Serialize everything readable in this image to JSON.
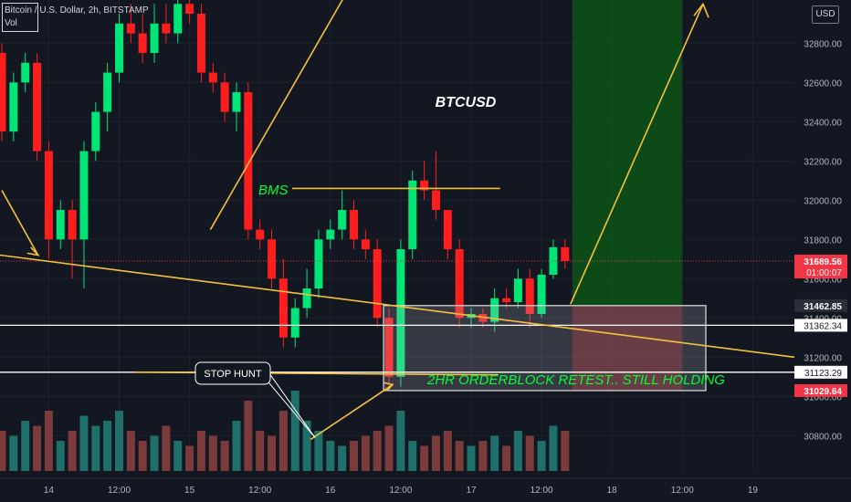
{
  "header": {
    "symbol": "Bitcoin / U.S. Dollar, 2h, BITSTAMP",
    "volume_label": "Vol"
  },
  "currency_button": "USD",
  "colors": {
    "up": "#00e676",
    "down": "#ff1e1e",
    "vol_up": "#1f6f6a",
    "vol_down": "#7c3b3b",
    "annotation": "#f5c13c",
    "label_green": "#00ff33",
    "bg": "#131722",
    "target_zone": "#0b5d16",
    "stop_zone": "#6b1f25"
  },
  "chart_data": {
    "type": "candlestick",
    "title": "BTCUSD",
    "ylim": [
      30620,
      33020
    ],
    "y_ticks": [
      30800,
      31000,
      31200,
      31400,
      31600,
      31800,
      32000,
      32200,
      32400,
      32600,
      32800
    ],
    "y_tick_labels": [
      "30800.00",
      "31000.00",
      "31200.00",
      "31400.00",
      "31600.00",
      "31800.00",
      "32000.00",
      "32200.00",
      "32400.00",
      "32600.00",
      "32800.00"
    ],
    "x_ticks": [
      {
        "label": "14",
        "index": 4
      },
      {
        "label": "12:00",
        "index": 10
      },
      {
        "label": "15",
        "index": 16
      },
      {
        "label": "12:00",
        "index": 22
      },
      {
        "label": "16",
        "index": 28
      },
      {
        "label": "12:00",
        "index": 34
      },
      {
        "label": "17",
        "index": 40
      },
      {
        "label": "12:00",
        "index": 46
      },
      {
        "label": "18",
        "index": 52
      },
      {
        "label": "12:00",
        "index": 58
      },
      {
        "label": "19",
        "index": 64
      }
    ],
    "candles": [
      {
        "o": 32750,
        "h": 32800,
        "l": 32300,
        "c": 32350
      },
      {
        "o": 32350,
        "h": 32650,
        "l": 32300,
        "c": 32600
      },
      {
        "o": 32600,
        "h": 32750,
        "l": 32550,
        "c": 32700
      },
      {
        "o": 32700,
        "h": 32750,
        "l": 32200,
        "c": 32250
      },
      {
        "o": 32250,
        "h": 32300,
        "l": 31700,
        "c": 31800
      },
      {
        "o": 31800,
        "h": 32000,
        "l": 31750,
        "c": 31950
      },
      {
        "o": 31950,
        "h": 32000,
        "l": 31600,
        "c": 31800
      },
      {
        "o": 31800,
        "h": 32300,
        "l": 31550,
        "c": 32250
      },
      {
        "o": 32250,
        "h": 32500,
        "l": 32200,
        "c": 32450
      },
      {
        "o": 32450,
        "h": 32700,
        "l": 32350,
        "c": 32650
      },
      {
        "o": 32650,
        "h": 32950,
        "l": 32600,
        "c": 32900
      },
      {
        "o": 32900,
        "h": 33000,
        "l": 32800,
        "c": 32850
      },
      {
        "o": 32850,
        "h": 32950,
        "l": 32700,
        "c": 32750
      },
      {
        "o": 32750,
        "h": 33000,
        "l": 32700,
        "c": 32900
      },
      {
        "o": 32900,
        "h": 33000,
        "l": 32800,
        "c": 32850
      },
      {
        "o": 32850,
        "h": 33050,
        "l": 32800,
        "c": 33000
      },
      {
        "o": 33000,
        "h": 33100,
        "l": 32900,
        "c": 32950
      },
      {
        "o": 32950,
        "h": 33000,
        "l": 32600,
        "c": 32650
      },
      {
        "o": 32650,
        "h": 32700,
        "l": 32550,
        "c": 32600
      },
      {
        "o": 32600,
        "h": 32650,
        "l": 32400,
        "c": 32450
      },
      {
        "o": 32450,
        "h": 32600,
        "l": 32350,
        "c": 32550
      },
      {
        "o": 32550,
        "h": 32600,
        "l": 31800,
        "c": 31850
      },
      {
        "o": 31850,
        "h": 31900,
        "l": 31750,
        "c": 31800
      },
      {
        "o": 31800,
        "h": 31850,
        "l": 31550,
        "c": 31600
      },
      {
        "o": 31600,
        "h": 31700,
        "l": 31250,
        "c": 31300
      },
      {
        "o": 31300,
        "h": 31500,
        "l": 31250,
        "c": 31450
      },
      {
        "o": 31450,
        "h": 31650,
        "l": 31400,
        "c": 31550
      },
      {
        "o": 31550,
        "h": 31850,
        "l": 31500,
        "c": 31800
      },
      {
        "o": 31800,
        "h": 31900,
        "l": 31750,
        "c": 31850
      },
      {
        "o": 31850,
        "h": 32050,
        "l": 31800,
        "c": 31950
      },
      {
        "o": 31950,
        "h": 32000,
        "l": 31750,
        "c": 31800
      },
      {
        "o": 31800,
        "h": 31850,
        "l": 31700,
        "c": 31750
      },
      {
        "o": 31750,
        "h": 31800,
        "l": 31350,
        "c": 31400
      },
      {
        "o": 31400,
        "h": 31450,
        "l": 31050,
        "c": 31100
      },
      {
        "o": 31100,
        "h": 31800,
        "l": 31050,
        "c": 31750
      },
      {
        "o": 31750,
        "h": 32150,
        "l": 31700,
        "c": 32100
      },
      {
        "o": 32100,
        "h": 32200,
        "l": 32000,
        "c": 32050
      },
      {
        "o": 32050,
        "h": 32250,
        "l": 31900,
        "c": 31950
      },
      {
        "o": 31950,
        "h": 31950,
        "l": 31700,
        "c": 31750
      },
      {
        "o": 31750,
        "h": 31800,
        "l": 31350,
        "c": 31400
      },
      {
        "o": 31400,
        "h": 31450,
        "l": 31350,
        "c": 31420
      },
      {
        "o": 31420,
        "h": 31450,
        "l": 31350,
        "c": 31380
      },
      {
        "o": 31380,
        "h": 31550,
        "l": 31330,
        "c": 31500
      },
      {
        "o": 31500,
        "h": 31550,
        "l": 31450,
        "c": 31480
      },
      {
        "o": 31480,
        "h": 31650,
        "l": 31450,
        "c": 31600
      },
      {
        "o": 31600,
        "h": 31650,
        "l": 31350,
        "c": 31420
      },
      {
        "o": 31420,
        "h": 31650,
        "l": 31400,
        "c": 31620
      },
      {
        "o": 31620,
        "h": 31800,
        "l": 31600,
        "c": 31760
      },
      {
        "o": 31760,
        "h": 31800,
        "l": 31650,
        "c": 31690
      }
    ],
    "volume": [
      0.4,
      0.35,
      0.5,
      0.45,
      0.6,
      0.3,
      0.4,
      0.55,
      0.45,
      0.5,
      0.6,
      0.4,
      0.3,
      0.35,
      0.45,
      0.3,
      0.25,
      0.4,
      0.35,
      0.3,
      0.5,
      0.7,
      0.4,
      0.35,
      0.6,
      0.8,
      0.5,
      0.4,
      0.3,
      0.25,
      0.3,
      0.35,
      0.4,
      0.45,
      0.6,
      0.3,
      0.25,
      0.35,
      0.4,
      0.3,
      0.25,
      0.3,
      0.35,
      0.25,
      0.4,
      0.35,
      0.3,
      0.45,
      0.4
    ],
    "horizontal_levels": [
      {
        "value": 31362.34,
        "label": "31362.34"
      },
      {
        "value": 31123.29,
        "label": "31123.29"
      }
    ],
    "price_labels": [
      {
        "value": 31689.56,
        "label": "31689.56",
        "countdown": "01:00:07",
        "color": "#f23645"
      },
      {
        "value": 31462.85,
        "label": "31462.85",
        "color": "#2a2e39"
      },
      {
        "value": 31029.64,
        "label": "31029.64",
        "color": "#f23645"
      }
    ],
    "annotations": {
      "bms": "BMS",
      "stop_hunt": "STOP HUNT",
      "orderblock": "2HR ORDERBLOCK RETEST.. STILL HOLDING"
    },
    "order_block": {
      "top": 31462.85,
      "bottom": 31029.64
    }
  }
}
